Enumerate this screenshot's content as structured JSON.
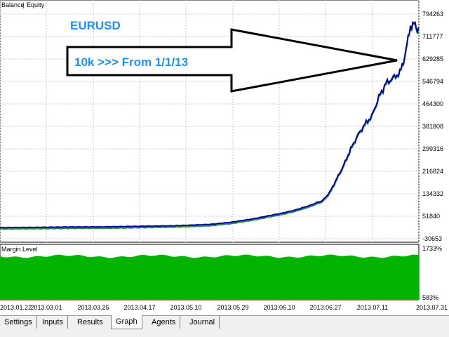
{
  "colors": {
    "balance": "#0000a0",
    "equity": "#2e8b57",
    "margin": "#00b400",
    "accent_text": "#1e90ff",
    "grid": "#c8c8c8"
  },
  "main_chart": {
    "legend": {
      "balance": "Balance",
      "equity": "Equity",
      "separator": "|"
    },
    "y_ticks": [
      "794263",
      "711777",
      "629285",
      "546794",
      "464300",
      "381808",
      "299316",
      "216824",
      "134332",
      "51840",
      "-30653"
    ],
    "ylim": [
      -30653,
      794263
    ],
    "grid": true
  },
  "annotation": {
    "title": "EURUSD",
    "subtitle": "10k >>> From 1/1/13",
    "arrow_icon": "left-arrow-icon"
  },
  "margin_panel": {
    "label": "Margin Level",
    "y_ticks": [
      "1733%",
      "583%"
    ],
    "ylim": [
      583,
      1733
    ]
  },
  "x_ticks": [
    "2013.01.22",
    "2013.03.01",
    "2013.03.25",
    "2013.04.17",
    "2013.05.10",
    "2013.05.29",
    "2013.06.10",
    "2013.06.27",
    "2013.07.11",
    "2013.07.31"
  ],
  "tabs": [
    {
      "label": "Settings",
      "active": false
    },
    {
      "label": "Inputs",
      "active": false
    },
    {
      "label": "Results",
      "active": false
    },
    {
      "label": "Graph",
      "active": true
    },
    {
      "label": "Agents",
      "active": false
    },
    {
      "label": "Journal",
      "active": false
    }
  ],
  "chart_data": {
    "type": "line",
    "series": [
      {
        "name": "Balance",
        "x": [
          0,
          50,
          100,
          150,
          200,
          250,
          300,
          330,
          360,
          380,
          400,
          420,
          440,
          460,
          470,
          480,
          490,
          500,
          510,
          520,
          530,
          540,
          550,
          560,
          570,
          575,
          580,
          585,
          590,
          595,
          597
        ],
        "values": [
          10000,
          11000,
          12500,
          13000,
          15000,
          17000,
          22000,
          30000,
          42000,
          52000,
          62000,
          74000,
          90000,
          110000,
          140000,
          190000,
          240000,
          300000,
          350000,
          390000,
          420000,
          490000,
          540000,
          560000,
          580000,
          620000,
          680000,
          750000,
          760000,
          735000,
          745000
        ]
      }
    ],
    "ylim": [
      -30653,
      794263
    ],
    "ylabel": "",
    "xlabel": ""
  }
}
